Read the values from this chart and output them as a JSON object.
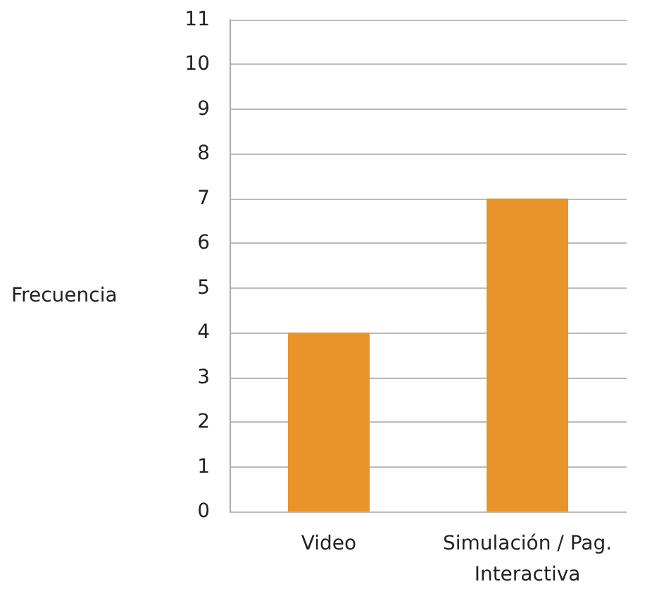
{
  "chart_data": {
    "type": "bar",
    "ylabel": "Frecuencia",
    "categories": [
      "Video",
      "Simulación / Pag.\nInteractiva"
    ],
    "values": [
      4,
      7
    ],
    "color": "#e8942a",
    "ylim": [
      0,
      11
    ],
    "yticks": [
      0,
      1,
      2,
      3,
      4,
      5,
      6,
      7,
      8,
      9,
      10,
      11
    ],
    "grid": "y"
  }
}
